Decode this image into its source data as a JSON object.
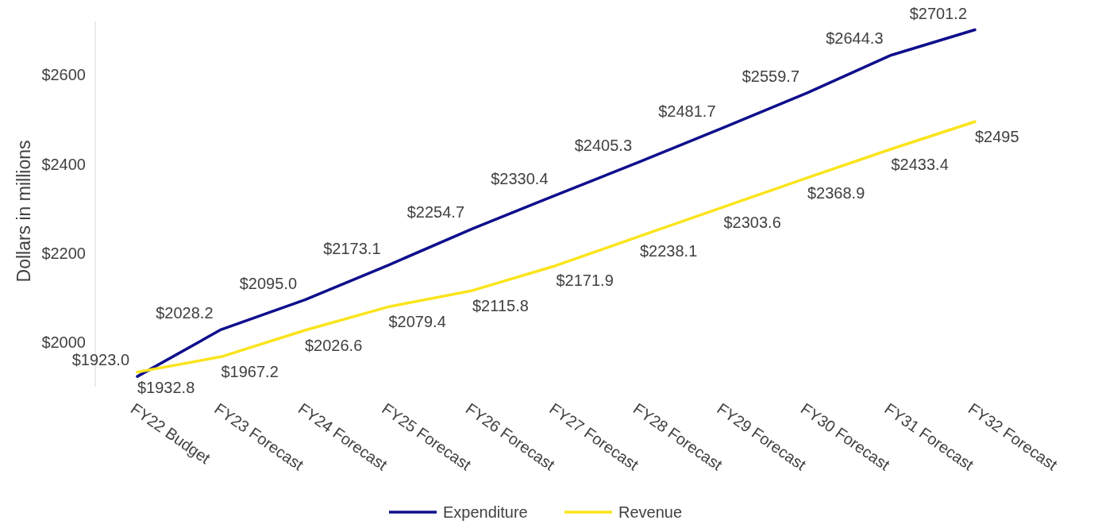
{
  "chart_data": {
    "type": "line",
    "ylabel": "Dollars in millions",
    "categories": [
      "FY22 Budget",
      "FY23 Forecast",
      "FY24 Forecast",
      "FY25 Forecast",
      "FY26 Forecast",
      "FY27 Forecast",
      "FY28 Forecast",
      "FY29 Forecast",
      "FY30 Forecast",
      "FY31 Forecast",
      "FY32 Forecast"
    ],
    "series": [
      {
        "name": "Expenditure",
        "color": "#0f0f8c",
        "values": [
          1923.0,
          2028.2,
          2095.0,
          2173.1,
          2254.7,
          2330.4,
          2405.3,
          2481.7,
          2559.7,
          2644.3,
          2701.2
        ],
        "value_labels": [
          "$1923.0",
          "$2028.2",
          "$2095.0",
          "$2173.1",
          "$2254.7",
          "$2330.4",
          "$2405.3",
          "$2481.7",
          "$2559.7",
          "$2644.3",
          "$2701.2"
        ]
      },
      {
        "name": "Revenue",
        "color": "#fbe41c",
        "values": [
          1932.8,
          1967.2,
          2026.6,
          2079.4,
          2115.8,
          2171.9,
          2238.1,
          2303.6,
          2368.9,
          2433.4,
          2495
        ],
        "value_labels": [
          "$1932.8",
          "$1967.2",
          "$2026.6",
          "$2079.4",
          "$2115.8",
          "$2171.9",
          "$2238.1",
          "$2303.6",
          "$2368.9",
          "$2433.4",
          "$2495"
        ]
      }
    ],
    "ylim": [
      1900,
      2720
    ],
    "yticks": [
      {
        "value": 2000,
        "label": "$2000"
      },
      {
        "value": 2200,
        "label": "$2200"
      },
      {
        "value": 2400,
        "label": "$2400"
      },
      {
        "value": 2600,
        "label": "$2600"
      }
    ],
    "grid": false,
    "legend": "bottom",
    "marker": "none",
    "line_style": "solid"
  }
}
